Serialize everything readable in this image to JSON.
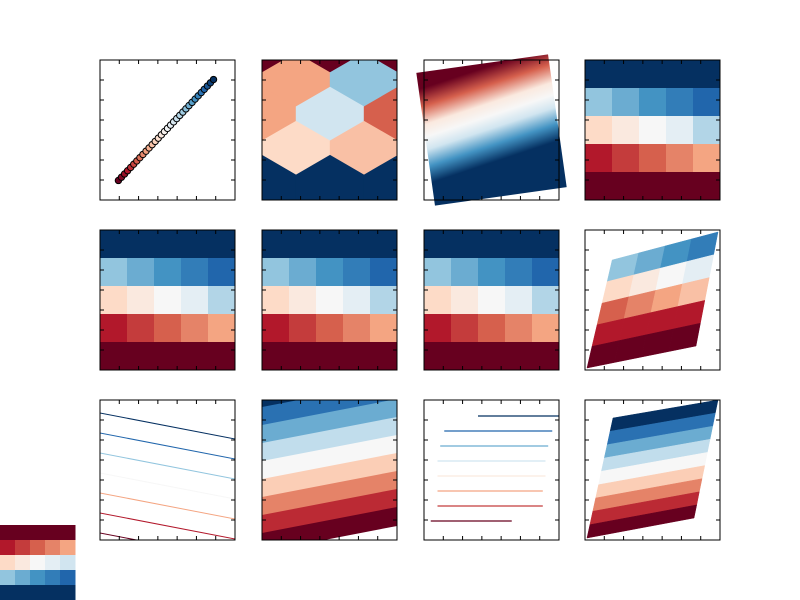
{
  "colormap": {
    "name": "RdBu",
    "levels": [
      "#67001f",
      "#b2182b",
      "#d6604d",
      "#f4a582",
      "#fddbc7",
      "#f7f7f7",
      "#d1e5f0",
      "#92c5de",
      "#4393c3",
      "#2166ac",
      "#053061"
    ]
  },
  "chart_data": [
    {
      "type": "scatter",
      "panel": 1,
      "x": [
        0,
        1,
        2,
        3,
        4,
        5,
        6,
        7,
        8,
        9,
        10,
        11,
        12,
        13,
        14,
        15,
        16,
        17,
        18,
        19,
        20,
        21,
        22,
        23,
        24,
        25,
        26,
        27,
        28,
        29,
        30,
        31
      ],
      "y": [
        0,
        1,
        2,
        3,
        4,
        5,
        6,
        7,
        8,
        9,
        10,
        11,
        12,
        13,
        14,
        15,
        16,
        17,
        18,
        19,
        20,
        21,
        22,
        23,
        24,
        25,
        26,
        27,
        28,
        29,
        30,
        31
      ],
      "color_by": "y",
      "xlim": [
        -6,
        38
      ],
      "ylim": [
        -6,
        37
      ],
      "xticks": [
        0,
        5,
        10,
        15,
        20,
        25,
        30,
        35
      ],
      "yticks": [
        0,
        5,
        10,
        15,
        20,
        25,
        30,
        35
      ],
      "grid": false
    },
    {
      "type": "hexbin",
      "panel": 2,
      "cells": [
        {
          "col": 0,
          "row": 0,
          "level": 0.0
        },
        {
          "col": 1,
          "row": 0,
          "level": 0.0
        },
        {
          "col": 2,
          "row": 0,
          "level": 0.0
        },
        {
          "col": 0.5,
          "row": 0.5,
          "level": 0.3
        },
        {
          "col": 1.5,
          "row": 0.5,
          "level": 0.7
        },
        {
          "col": 0,
          "row": 1,
          "level": 0.3
        },
        {
          "col": 1,
          "row": 1,
          "level": 0.6
        },
        {
          "col": 2,
          "row": 1,
          "level": 0.2
        },
        {
          "col": 0.5,
          "row": 1.5,
          "level": 0.4
        },
        {
          "col": 1.5,
          "row": 1.5,
          "level": 0.35
        },
        {
          "col": 0,
          "row": 2,
          "level": 1.0
        },
        {
          "col": 1,
          "row": 2,
          "level": 1.0
        },
        {
          "col": 2,
          "row": 2,
          "level": 1.0
        }
      ],
      "grid": false
    },
    {
      "type": "heatmap",
      "panel": 3,
      "style": "continuous diagonal gradient",
      "grid": false
    },
    {
      "type": "heatmap",
      "panel": 4,
      "rows": [
        [
          1.0,
          1.0,
          1.0,
          1.0,
          1.0
        ],
        [
          0.7,
          0.75,
          0.8,
          0.85,
          0.9
        ],
        [
          0.4,
          0.45,
          0.5,
          0.55,
          0.65
        ],
        [
          0.1,
          0.15,
          0.2,
          0.25,
          0.3
        ],
        [
          0.0,
          0.0,
          0.0,
          0.0,
          0.0
        ]
      ],
      "grid": false
    },
    {
      "type": "heatmap",
      "panel": 5,
      "rows": [
        [
          1.0,
          1.0,
          1.0,
          1.0,
          1.0
        ],
        [
          0.7,
          0.75,
          0.8,
          0.85,
          0.9
        ],
        [
          0.4,
          0.45,
          0.5,
          0.55,
          0.65
        ],
        [
          0.1,
          0.15,
          0.2,
          0.25,
          0.3
        ],
        [
          0.0,
          0.0,
          0.0,
          0.0,
          0.0
        ]
      ],
      "grid": false
    },
    {
      "type": "heatmap",
      "panel": 6,
      "rows": [
        [
          1.0,
          1.0,
          1.0,
          1.0,
          1.0
        ],
        [
          0.7,
          0.75,
          0.8,
          0.85,
          0.9
        ],
        [
          0.4,
          0.45,
          0.5,
          0.55,
          0.65
        ],
        [
          0.1,
          0.15,
          0.2,
          0.25,
          0.3
        ],
        [
          0.0,
          0.0,
          0.0,
          0.0,
          0.0
        ]
      ],
      "grid": false
    },
    {
      "type": "heatmap",
      "panel": 7,
      "rows": [
        [
          1.0,
          1.0,
          1.0,
          1.0,
          1.0
        ],
        [
          0.7,
          0.75,
          0.8,
          0.85,
          0.9
        ],
        [
          0.4,
          0.45,
          0.5,
          0.55,
          0.65
        ],
        [
          0.1,
          0.15,
          0.2,
          0.25,
          0.3
        ],
        [
          0.0,
          0.0,
          0.0,
          0.0,
          0.0
        ]
      ],
      "grid": false
    },
    {
      "type": "heatmap",
      "panel": 8,
      "style": "sheared quad mesh",
      "rows": [
        [
          0.7,
          0.75,
          0.8,
          0.85
        ],
        [
          0.4,
          0.45,
          0.5,
          0.55
        ],
        [
          0.2,
          0.25,
          0.3,
          0.35
        ],
        [
          0.1,
          0.1,
          0.1,
          0.1
        ],
        [
          0.0,
          0.0,
          0.0,
          0.0
        ]
      ],
      "grid": false
    },
    {
      "type": "line",
      "panel": 9,
      "style": "contour lines",
      "levels": [
        0.0,
        0.1,
        0.3,
        0.5,
        0.7,
        0.9,
        1.0
      ],
      "grid": false
    },
    {
      "type": "area",
      "panel": 10,
      "style": "filled contours",
      "levels": [
        0.0,
        0.125,
        0.25,
        0.375,
        0.5,
        0.625,
        0.75,
        0.875,
        1.0
      ],
      "grid": false
    },
    {
      "type": "line",
      "panel": 11,
      "style": "horizontal segments",
      "segments": [
        {
          "level": 1.0,
          "x0": 0.4,
          "x1": 1.0
        },
        {
          "level": 0.9,
          "x0": 0.15,
          "x1": 0.95
        },
        {
          "level": 0.75,
          "x0": 0.12,
          "x1": 0.92
        },
        {
          "level": 0.6,
          "x0": 0.1,
          "x1": 0.9
        },
        {
          "level": 0.45,
          "x0": 0.1,
          "x1": 0.9
        },
        {
          "level": 0.3,
          "x0": 0.1,
          "x1": 0.88
        },
        {
          "level": 0.15,
          "x0": 0.1,
          "x1": 0.88
        },
        {
          "level": 0.0,
          "x0": 0.05,
          "x1": 0.65
        }
      ],
      "grid": false
    },
    {
      "type": "area",
      "panel": 12,
      "style": "sheared filled bands",
      "levels": [
        0.0,
        0.125,
        0.25,
        0.375,
        0.5,
        0.625,
        0.75,
        0.875,
        1.0
      ],
      "grid": false
    }
  ],
  "colorbar": {
    "levels": [
      0.0,
      0.1,
      0.2,
      0.3,
      0.4,
      0.5,
      0.6,
      0.7,
      0.8,
      0.9,
      1.0
    ]
  }
}
